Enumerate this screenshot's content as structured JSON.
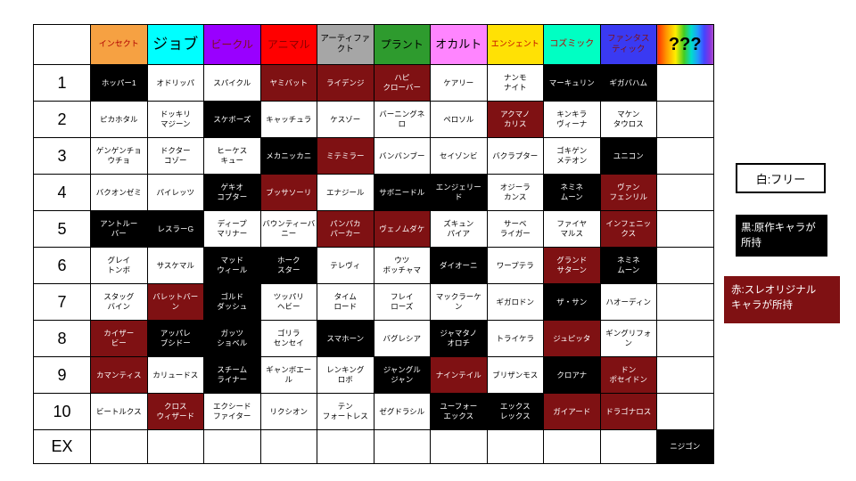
{
  "colors": {
    "free_bg": "#FFFFFF",
    "original_owner_bg": "#000000",
    "thread_owner_bg": "#7F1113"
  },
  "legend": {
    "items": [
      {
        "id": "free",
        "label": "白:フリー"
      },
      {
        "id": "original",
        "label": "黒:原作キャラが\n所持"
      },
      {
        "id": "thread-original",
        "label": "赤:スレオリジナル\nキャラが所持"
      }
    ]
  },
  "table": {
    "corner_label": "",
    "columns": [
      {
        "label": "インセクト",
        "bg": "#F6A142",
        "fg": "#B00000",
        "fs": 9,
        "bold": false
      },
      {
        "label": "ジョブ",
        "bg": "#00FFFF",
        "fg": "#000000",
        "fs": 17,
        "bold": false
      },
      {
        "label": "ビークル",
        "bg": "#9900FF",
        "fg": "#7F1113",
        "fs": 12,
        "bold": false
      },
      {
        "label": "アニマル",
        "bg": "#FF0000",
        "fg": "#8B0000",
        "fs": 12,
        "bold": false
      },
      {
        "label": "アーティファ\nクト",
        "bg": "#A6A6A6",
        "fg": "#000000",
        "fs": 9.5,
        "bold": false
      },
      {
        "label": "プラント",
        "bg": "#2E9B2E",
        "fg": "#000000",
        "fs": 12,
        "bold": false
      },
      {
        "label": "オカルト",
        "bg": "#FF85FF",
        "fg": "#000000",
        "fs": 13,
        "bold": false
      },
      {
        "label": "エンシェント",
        "bg": "#FFE105",
        "fg": "#C00000",
        "fs": 9,
        "bold": false
      },
      {
        "label": "コズミック",
        "bg": "#00FFC3",
        "fg": "#C00000",
        "fs": 10,
        "bold": false
      },
      {
        "label": "ファンタス\nティック",
        "bg": "#3A3AF2",
        "fg": "#7F1113",
        "fs": 9.5,
        "bold": false
      },
      {
        "label": "???",
        "bg": "rainbow",
        "fg": "#000000",
        "fs": 20,
        "bold": true
      }
    ],
    "rows": [
      {
        "label": "1",
        "cells": [
          {
            "text": "ホッパー1",
            "owner": "black"
          },
          {
            "text": "オドリッパ",
            "owner": "free"
          },
          {
            "text": "スパイクル",
            "owner": "free"
          },
          {
            "text": "ヤミバット",
            "owner": "red"
          },
          {
            "text": "ライデンジ",
            "owner": "red"
          },
          {
            "text": "ハピ\nクローバー",
            "owner": "red"
          },
          {
            "text": "ケアリー",
            "owner": "free"
          },
          {
            "text": "ナンモ\nナイト",
            "owner": "free"
          },
          {
            "text": "マーキュリン",
            "owner": "black"
          },
          {
            "text": "ギガバハム",
            "owner": "black"
          },
          {
            "text": "",
            "owner": "empty"
          }
        ]
      },
      {
        "label": "2",
        "cells": [
          {
            "text": "ピカホタル",
            "owner": "free"
          },
          {
            "text": "ドッキリ\nマジーン",
            "owner": "free"
          },
          {
            "text": "スケボーズ",
            "owner": "black"
          },
          {
            "text": "キャッチュラ",
            "owner": "free"
          },
          {
            "text": "ケスゾー",
            "owner": "free"
          },
          {
            "text": "バーニングネ\nロ",
            "owner": "free"
          },
          {
            "text": "ペロソル",
            "owner": "free"
          },
          {
            "text": "アクマノ\nカリス",
            "owner": "red"
          },
          {
            "text": "キンキラ\nヴィーナ",
            "owner": "free"
          },
          {
            "text": "マケン\nタウロス",
            "owner": "free"
          },
          {
            "text": "",
            "owner": "empty"
          }
        ]
      },
      {
        "label": "3",
        "cells": [
          {
            "text": "ゲンゲンチョ\nウチョ",
            "owner": "free"
          },
          {
            "text": "ドクター\nコゾー",
            "owner": "free"
          },
          {
            "text": "ヒーケス\nキュー",
            "owner": "free"
          },
          {
            "text": "メカニッカニ",
            "owner": "black"
          },
          {
            "text": "ミテミラー",
            "owner": "red"
          },
          {
            "text": "バンバンブー",
            "owner": "free"
          },
          {
            "text": "セイゾンビ",
            "owner": "free"
          },
          {
            "text": "バクラプター",
            "owner": "free"
          },
          {
            "text": "ゴキゲン\nメテオン",
            "owner": "free"
          },
          {
            "text": "ユニコン",
            "owner": "black"
          },
          {
            "text": "",
            "owner": "empty"
          }
        ]
      },
      {
        "label": "4",
        "cells": [
          {
            "text": "バクオンゼミ",
            "owner": "free"
          },
          {
            "text": "パイレッツ",
            "owner": "free"
          },
          {
            "text": "ゲキオ\nコプター",
            "owner": "black"
          },
          {
            "text": "ブッサソーリ",
            "owner": "red"
          },
          {
            "text": "エナジール",
            "owner": "free"
          },
          {
            "text": "サボニードル",
            "owner": "black"
          },
          {
            "text": "エンジェリー\nド",
            "owner": "black"
          },
          {
            "text": "オジーラ\nカンス",
            "owner": "free"
          },
          {
            "text": "ネミネ\nムーン",
            "owner": "black"
          },
          {
            "text": "ヴァン\nフェンリル",
            "owner": "red"
          },
          {
            "text": "",
            "owner": "empty"
          }
        ]
      },
      {
        "label": "5",
        "cells": [
          {
            "text": "アントルー\nバー",
            "owner": "black"
          },
          {
            "text": "レスラーG",
            "owner": "black"
          },
          {
            "text": "ディープ\nマリナー",
            "owner": "free"
          },
          {
            "text": "バウンティーバ\nニー",
            "owner": "free"
          },
          {
            "text": "パンパカ\nパーカー",
            "owner": "red"
          },
          {
            "text": "ヴェノムダケ",
            "owner": "red"
          },
          {
            "text": "ズキュン\nパイア",
            "owner": "free"
          },
          {
            "text": "サーベ\nライガー",
            "owner": "free"
          },
          {
            "text": "ファイヤ\nマルス",
            "owner": "free"
          },
          {
            "text": "インフェニッ\nクス",
            "owner": "red"
          },
          {
            "text": "",
            "owner": "empty"
          }
        ]
      },
      {
        "label": "6",
        "cells": [
          {
            "text": "グレイ\nトンボ",
            "owner": "free"
          },
          {
            "text": "サスケマル",
            "owner": "free"
          },
          {
            "text": "マッド\nウィール",
            "owner": "black"
          },
          {
            "text": "ホーク\nスター",
            "owner": "black"
          },
          {
            "text": "テレヴィ",
            "owner": "free"
          },
          {
            "text": "ウツ\nボッチャマ",
            "owner": "free"
          },
          {
            "text": "ダイオーニ",
            "owner": "black"
          },
          {
            "text": "ワープテラ",
            "owner": "free"
          },
          {
            "text": "グランド\nサターン",
            "owner": "red"
          },
          {
            "text": "ネミネ\nムーン",
            "owner": "black"
          },
          {
            "text": "",
            "owner": "empty"
          }
        ]
      },
      {
        "label": "7",
        "cells": [
          {
            "text": "スタッグ\nバイン",
            "owner": "free"
          },
          {
            "text": "バレットバー\nン",
            "owner": "red"
          },
          {
            "text": "ゴルド\nダッシュ",
            "owner": "black"
          },
          {
            "text": "ツッパリ\nヘビー",
            "owner": "free"
          },
          {
            "text": "タイム\nロード",
            "owner": "free"
          },
          {
            "text": "フレイ\nローズ",
            "owner": "free"
          },
          {
            "text": "マックラーケ\nン",
            "owner": "free"
          },
          {
            "text": "ギガロドン",
            "owner": "free"
          },
          {
            "text": "ザ・サン",
            "owner": "black"
          },
          {
            "text": "ハオーディン",
            "owner": "free"
          },
          {
            "text": "",
            "owner": "empty"
          }
        ]
      },
      {
        "label": "8",
        "cells": [
          {
            "text": "カイザー\nビー",
            "owner": "red"
          },
          {
            "text": "アッパレ\nブシドー",
            "owner": "black"
          },
          {
            "text": "ガッツ\nショベル",
            "owner": "black"
          },
          {
            "text": "ゴリラ\nセンセイ",
            "owner": "free"
          },
          {
            "text": "スマホーン",
            "owner": "black"
          },
          {
            "text": "バグレシア",
            "owner": "free"
          },
          {
            "text": "ジャマタノ\nオロチ",
            "owner": "black"
          },
          {
            "text": "トライケラ",
            "owner": "free"
          },
          {
            "text": "ジュピッタ",
            "owner": "red"
          },
          {
            "text": "ギングリフォ\nン",
            "owner": "free"
          },
          {
            "text": "",
            "owner": "empty"
          }
        ]
      },
      {
        "label": "9",
        "cells": [
          {
            "text": "カマンティス",
            "owner": "red"
          },
          {
            "text": "カリュードス",
            "owner": "free"
          },
          {
            "text": "スチーム\nライナー",
            "owner": "black"
          },
          {
            "text": "ギャンボエー\nル",
            "owner": "free"
          },
          {
            "text": "レンキング\nロボ",
            "owner": "free"
          },
          {
            "text": "ジャングル\nジャン",
            "owner": "black"
          },
          {
            "text": "ナインテイル",
            "owner": "red"
          },
          {
            "text": "ブリザンモス",
            "owner": "free"
          },
          {
            "text": "クロアナ",
            "owner": "black"
          },
          {
            "text": "ドン\nポセイドン",
            "owner": "red"
          },
          {
            "text": "",
            "owner": "empty"
          }
        ]
      },
      {
        "label": "10",
        "cells": [
          {
            "text": "ビートルクス",
            "owner": "free"
          },
          {
            "text": "クロス\nウィザード",
            "owner": "red"
          },
          {
            "text": "エクシード\nファイター",
            "owner": "free"
          },
          {
            "text": "リクシオン",
            "owner": "free"
          },
          {
            "text": "テン\nフォートレス",
            "owner": "free"
          },
          {
            "text": "ゼグドラシル",
            "owner": "free"
          },
          {
            "text": "ユーフォー\nエックス",
            "owner": "black"
          },
          {
            "text": "エックス\nレックス",
            "owner": "black"
          },
          {
            "text": "ガイアード",
            "owner": "red"
          },
          {
            "text": "ドラゴナロス",
            "owner": "red"
          },
          {
            "text": "",
            "owner": "empty"
          }
        ]
      },
      {
        "label": "EX",
        "cells": [
          {
            "text": "",
            "owner": "empty"
          },
          {
            "text": "",
            "owner": "empty"
          },
          {
            "text": "",
            "owner": "empty"
          },
          {
            "text": "",
            "owner": "empty"
          },
          {
            "text": "",
            "owner": "empty"
          },
          {
            "text": "",
            "owner": "empty"
          },
          {
            "text": "",
            "owner": "empty"
          },
          {
            "text": "",
            "owner": "empty"
          },
          {
            "text": "",
            "owner": "empty"
          },
          {
            "text": "",
            "owner": "empty"
          },
          {
            "text": "ニジゴン",
            "owner": "black"
          }
        ]
      }
    ]
  }
}
